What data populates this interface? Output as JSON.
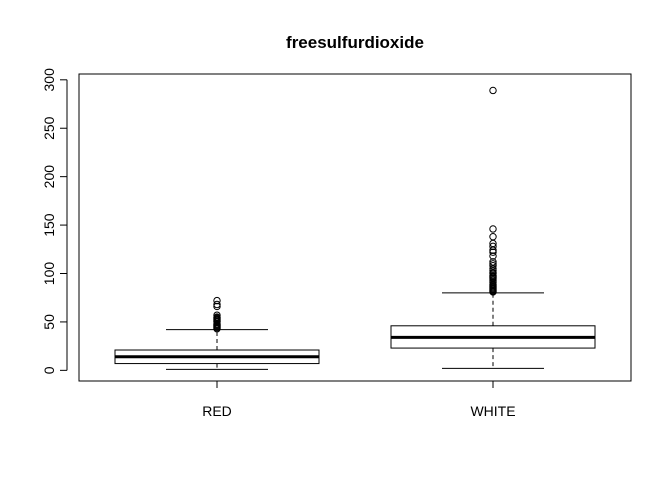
{
  "chart_data": {
    "type": "boxplot",
    "title": "freesulfurdioxide",
    "xlabel": "",
    "ylabel": "",
    "categories": [
      "RED",
      "WHITE"
    ],
    "ylim": [
      -11,
      306
    ],
    "yticks": [
      0,
      50,
      100,
      150,
      200,
      250,
      300
    ],
    "grid": false,
    "legend": "none",
    "boxes": [
      {
        "name": "RED",
        "whisker_low": 1,
        "q1": 7,
        "median": 14,
        "q3": 21,
        "whisker_high": 42,
        "outliers": [
          43,
          44,
          45,
          46,
          47,
          48,
          50,
          51,
          52,
          53,
          54,
          55,
          57,
          66,
          68,
          72
        ]
      },
      {
        "name": "WHITE",
        "whisker_low": 2,
        "q1": 23,
        "median": 34,
        "q3": 46,
        "whisker_high": 80,
        "outliers": [
          81,
          82,
          83,
          84,
          85,
          86,
          87,
          88,
          89,
          91,
          93,
          95,
          96,
          97,
          98,
          100,
          101,
          103,
          105,
          108,
          110,
          112,
          118,
          122,
          124,
          128,
          131,
          138,
          146,
          289
        ]
      }
    ]
  }
}
